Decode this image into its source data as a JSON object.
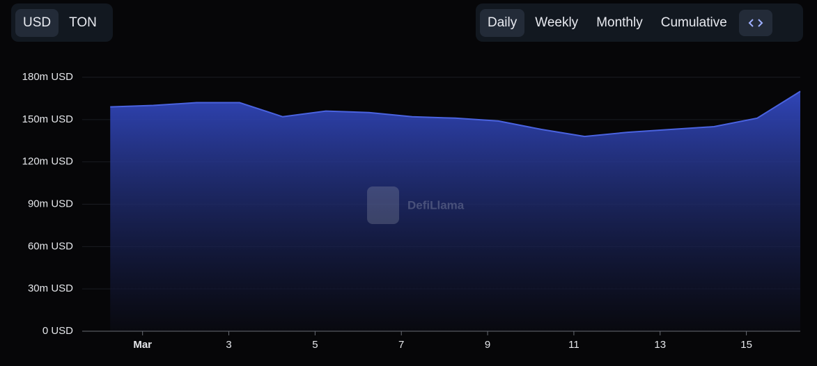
{
  "controls": {
    "currency": [
      "USD",
      "TON"
    ],
    "period": [
      "Daily",
      "Weekly",
      "Monthly",
      "Cumulative"
    ]
  },
  "chart_data": {
    "type": "area",
    "watermark": "DefiLlama",
    "x": [
      0.25,
      1.25,
      2.25,
      3.25,
      4.25,
      5.25,
      6.25,
      7.25,
      8.25,
      9.25,
      10.25,
      11.25,
      12.25,
      13.25,
      14.25,
      15.25,
      16.25
    ],
    "values": [
      159,
      160,
      162,
      162,
      152,
      156,
      155,
      152,
      151,
      149,
      143,
      138,
      141,
      143,
      145,
      151,
      170
    ],
    "color": "#4a63e0",
    "xlim": [
      -0.4,
      16.25
    ],
    "xticks": [
      {
        "value": 1,
        "label": "Mar"
      },
      3,
      5,
      7,
      9,
      11,
      13,
      15
    ],
    "ylim": [
      0,
      180
    ],
    "yticks": [
      {
        "value": 0,
        "label": "0 USD"
      },
      {
        "value": 30,
        "label": "30m USD"
      },
      {
        "value": 60,
        "label": "60m USD"
      },
      {
        "value": 90,
        "label": "90m USD"
      },
      {
        "value": 120,
        "label": "120m USD"
      },
      {
        "value": 150,
        "label": "150m USD"
      },
      {
        "value": 180,
        "label": "180m USD"
      }
    ],
    "grid": true
  }
}
